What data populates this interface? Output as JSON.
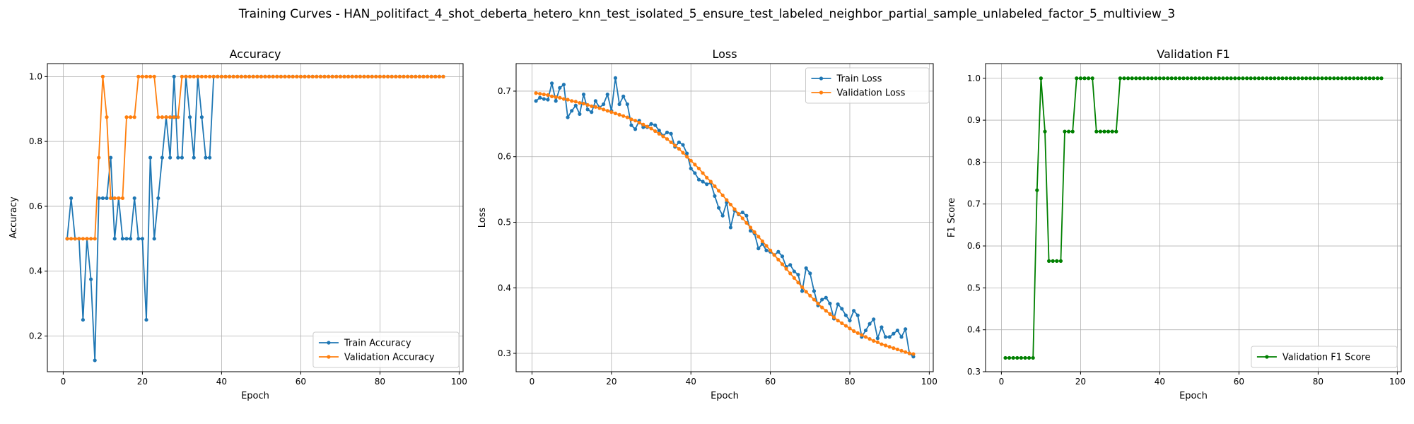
{
  "suptitle": "Training Curves - HAN_politifact_4_shot_deberta_hetero_knn_test_isolated_5_ensure_test_labeled_neighbor_partial_sample_unlabeled_factor_5_multiview_3",
  "colors": {
    "train": "#1f77b4",
    "val": "#ff7f0e",
    "f1": "#008000"
  },
  "chart_data": [
    {
      "type": "line",
      "title": "Accuracy",
      "xlabel": "Epoch",
      "ylabel": "Accuracy",
      "xlim": [
        -4,
        101
      ],
      "ylim": [
        0.09,
        1.04
      ],
      "xticks": [
        0,
        20,
        40,
        60,
        80,
        100
      ],
      "yticks": [
        0.2,
        0.4,
        0.6,
        0.8,
        1.0
      ],
      "ytick_labels": [
        "0.2",
        "0.4",
        "0.6",
        "0.8",
        "1.0"
      ],
      "grid": true,
      "legend_position": "lower-right",
      "x": [
        1,
        2,
        3,
        4,
        5,
        6,
        7,
        8,
        9,
        10,
        11,
        12,
        13,
        14,
        15,
        16,
        17,
        18,
        19,
        20,
        21,
        22,
        23,
        24,
        25,
        26,
        27,
        28,
        29,
        30,
        31,
        32,
        33,
        34,
        35,
        36,
        37,
        38,
        39,
        40,
        41,
        42,
        43,
        44,
        45,
        46,
        47,
        48,
        49,
        50,
        51,
        52,
        53,
        54,
        55,
        56,
        57,
        58,
        59,
        60,
        61,
        62,
        63,
        64,
        65,
        66,
        67,
        68,
        69,
        70,
        71,
        72,
        73,
        74,
        75,
        76,
        77,
        78,
        79,
        80,
        81,
        82,
        83,
        84,
        85,
        86,
        87,
        88,
        89,
        90,
        91,
        92,
        93,
        94,
        95,
        96
      ],
      "series": [
        {
          "name": "Train Accuracy",
          "color_key": "train",
          "values": [
            0.5,
            0.625,
            0.5,
            0.5,
            0.25,
            0.5,
            0.375,
            0.125,
            0.625,
            0.625,
            0.625,
            0.75,
            0.5,
            0.625,
            0.5,
            0.5,
            0.5,
            0.625,
            0.5,
            0.5,
            0.25,
            0.75,
            0.5,
            0.625,
            0.75,
            0.875,
            0.75,
            1.0,
            0.75,
            0.75,
            1.0,
            0.875,
            0.75,
            1.0,
            0.875,
            0.75,
            0.75,
            1.0,
            1.0,
            1.0,
            1.0,
            1.0,
            1.0,
            1.0,
            1.0,
            1.0,
            1.0,
            1.0,
            1.0,
            1.0,
            1.0,
            1.0,
            1.0,
            1.0,
            1.0,
            1.0,
            1.0,
            1.0,
            1.0,
            1.0,
            1.0,
            1.0,
            1.0,
            1.0,
            1.0,
            1.0,
            1.0,
            1.0,
            1.0,
            1.0,
            1.0,
            1.0,
            1.0,
            1.0,
            1.0,
            1.0,
            1.0,
            1.0,
            1.0,
            1.0,
            1.0,
            1.0,
            1.0,
            1.0,
            1.0,
            1.0,
            1.0,
            1.0,
            1.0,
            1.0,
            1.0,
            1.0,
            1.0,
            1.0,
            1.0,
            1.0
          ]
        },
        {
          "name": "Validation Accuracy",
          "color_key": "val",
          "values": [
            0.5,
            0.5,
            0.5,
            0.5,
            0.5,
            0.5,
            0.5,
            0.5,
            0.75,
            1.0,
            0.875,
            0.625,
            0.625,
            0.625,
            0.625,
            0.875,
            0.875,
            0.875,
            1.0,
            1.0,
            1.0,
            1.0,
            1.0,
            0.875,
            0.875,
            0.875,
            0.875,
            0.875,
            0.875,
            1.0,
            1.0,
            1.0,
            1.0,
            1.0,
            1.0,
            1.0,
            1.0,
            1.0,
            1.0,
            1.0,
            1.0,
            1.0,
            1.0,
            1.0,
            1.0,
            1.0,
            1.0,
            1.0,
            1.0,
            1.0,
            1.0,
            1.0,
            1.0,
            1.0,
            1.0,
            1.0,
            1.0,
            1.0,
            1.0,
            1.0,
            1.0,
            1.0,
            1.0,
            1.0,
            1.0,
            1.0,
            1.0,
            1.0,
            1.0,
            1.0,
            1.0,
            1.0,
            1.0,
            1.0,
            1.0,
            1.0,
            1.0,
            1.0,
            1.0,
            1.0,
            1.0,
            1.0,
            1.0,
            1.0,
            1.0,
            1.0,
            1.0,
            1.0,
            1.0,
            1.0,
            1.0,
            1.0,
            1.0,
            1.0,
            1.0,
            1.0
          ]
        }
      ]
    },
    {
      "type": "line",
      "title": "Loss",
      "xlabel": "Epoch",
      "ylabel": "Loss",
      "xlim": [
        -4,
        101
      ],
      "ylim": [
        0.272,
        0.742
      ],
      "xticks": [
        0,
        20,
        40,
        60,
        80,
        100
      ],
      "yticks": [
        0.3,
        0.4,
        0.5,
        0.6,
        0.7
      ],
      "ytick_labels": [
        "0.3",
        "0.4",
        "0.5",
        "0.6",
        "0.7"
      ],
      "grid": true,
      "legend_position": "upper-right",
      "x": [
        1,
        2,
        3,
        4,
        5,
        6,
        7,
        8,
        9,
        10,
        11,
        12,
        13,
        14,
        15,
        16,
        17,
        18,
        19,
        20,
        21,
        22,
        23,
        24,
        25,
        26,
        27,
        28,
        29,
        30,
        31,
        32,
        33,
        34,
        35,
        36,
        37,
        38,
        39,
        40,
        41,
        42,
        43,
        44,
        45,
        46,
        47,
        48,
        49,
        50,
        51,
        52,
        53,
        54,
        55,
        56,
        57,
        58,
        59,
        60,
        61,
        62,
        63,
        64,
        65,
        66,
        67,
        68,
        69,
        70,
        71,
        72,
        73,
        74,
        75,
        76,
        77,
        78,
        79,
        80,
        81,
        82,
        83,
        84,
        85,
        86,
        87,
        88,
        89,
        90,
        91,
        92,
        93,
        94,
        95,
        96
      ],
      "series": [
        {
          "name": "Train Loss",
          "color_key": "train",
          "values": [
            0.685,
            0.69,
            0.688,
            0.687,
            0.712,
            0.685,
            0.705,
            0.71,
            0.66,
            0.67,
            0.678,
            0.665,
            0.695,
            0.672,
            0.668,
            0.685,
            0.675,
            0.68,
            0.695,
            0.67,
            0.72,
            0.68,
            0.692,
            0.68,
            0.648,
            0.642,
            0.655,
            0.645,
            0.645,
            0.65,
            0.648,
            0.64,
            0.632,
            0.637,
            0.635,
            0.615,
            0.622,
            0.618,
            0.605,
            0.582,
            0.575,
            0.565,
            0.562,
            0.558,
            0.56,
            0.54,
            0.522,
            0.51,
            0.53,
            0.492,
            0.518,
            0.512,
            0.515,
            0.51,
            0.487,
            0.483,
            0.46,
            0.467,
            0.457,
            0.455,
            0.45,
            0.455,
            0.448,
            0.432,
            0.435,
            0.425,
            0.42,
            0.395,
            0.43,
            0.422,
            0.395,
            0.373,
            0.382,
            0.385,
            0.376,
            0.353,
            0.375,
            0.368,
            0.358,
            0.35,
            0.365,
            0.358,
            0.325,
            0.335,
            0.345,
            0.352,
            0.323,
            0.34,
            0.325,
            0.325,
            0.33,
            0.335,
            0.325,
            0.337,
            0.3,
            0.295
          ]
        },
        {
          "name": "Validation Loss",
          "color_key": "val",
          "values": [
            0.697,
            0.696,
            0.695,
            0.694,
            0.692,
            0.691,
            0.69,
            0.688,
            0.687,
            0.685,
            0.684,
            0.682,
            0.681,
            0.679,
            0.677,
            0.676,
            0.674,
            0.672,
            0.67,
            0.668,
            0.666,
            0.664,
            0.662,
            0.66,
            0.657,
            0.655,
            0.652,
            0.649,
            0.646,
            0.643,
            0.639,
            0.635,
            0.631,
            0.627,
            0.622,
            0.617,
            0.612,
            0.606,
            0.6,
            0.594,
            0.588,
            0.582,
            0.575,
            0.568,
            0.562,
            0.555,
            0.548,
            0.541,
            0.534,
            0.527,
            0.52,
            0.513,
            0.506,
            0.499,
            0.492,
            0.485,
            0.478,
            0.471,
            0.464,
            0.457,
            0.45,
            0.443,
            0.436,
            0.429,
            0.422,
            0.415,
            0.408,
            0.401,
            0.394,
            0.388,
            0.382,
            0.376,
            0.37,
            0.365,
            0.36,
            0.355,
            0.35,
            0.346,
            0.342,
            0.338,
            0.334,
            0.331,
            0.328,
            0.325,
            0.322,
            0.319,
            0.317,
            0.314,
            0.312,
            0.31,
            0.308,
            0.306,
            0.304,
            0.302,
            0.3,
            0.299
          ]
        }
      ]
    },
    {
      "type": "line",
      "title": "Validation F1",
      "xlabel": "Epoch",
      "ylabel": "F1 Score",
      "xlim": [
        -4,
        101
      ],
      "ylim": [
        0.3,
        1.035
      ],
      "xticks": [
        0,
        20,
        40,
        60,
        80,
        100
      ],
      "yticks": [
        0.3,
        0.4,
        0.5,
        0.6,
        0.7,
        0.8,
        0.9,
        1.0
      ],
      "ytick_labels": [
        "0.3",
        "0.4",
        "0.5",
        "0.6",
        "0.7",
        "0.8",
        "0.9",
        "1.0"
      ],
      "grid": true,
      "legend_position": "lower-right",
      "x": [
        1,
        2,
        3,
        4,
        5,
        6,
        7,
        8,
        9,
        10,
        11,
        12,
        13,
        14,
        15,
        16,
        17,
        18,
        19,
        20,
        21,
        22,
        23,
        24,
        25,
        26,
        27,
        28,
        29,
        30,
        31,
        32,
        33,
        34,
        35,
        36,
        37,
        38,
        39,
        40,
        41,
        42,
        43,
        44,
        45,
        46,
        47,
        48,
        49,
        50,
        51,
        52,
        53,
        54,
        55,
        56,
        57,
        58,
        59,
        60,
        61,
        62,
        63,
        64,
        65,
        66,
        67,
        68,
        69,
        70,
        71,
        72,
        73,
        74,
        75,
        76,
        77,
        78,
        79,
        80,
        81,
        82,
        83,
        84,
        85,
        86,
        87,
        88,
        89,
        90,
        91,
        92,
        93,
        94,
        95,
        96
      ],
      "series": [
        {
          "name": "Validation F1 Score",
          "color_key": "f1",
          "values": [
            0.333,
            0.333,
            0.333,
            0.333,
            0.333,
            0.333,
            0.333,
            0.333,
            0.733,
            1.0,
            0.873,
            0.564,
            0.564,
            0.564,
            0.564,
            0.873,
            0.873,
            0.873,
            1.0,
            1.0,
            1.0,
            1.0,
            1.0,
            0.873,
            0.873,
            0.873,
            0.873,
            0.873,
            0.873,
            1.0,
            1.0,
            1.0,
            1.0,
            1.0,
            1.0,
            1.0,
            1.0,
            1.0,
            1.0,
            1.0,
            1.0,
            1.0,
            1.0,
            1.0,
            1.0,
            1.0,
            1.0,
            1.0,
            1.0,
            1.0,
            1.0,
            1.0,
            1.0,
            1.0,
            1.0,
            1.0,
            1.0,
            1.0,
            1.0,
            1.0,
            1.0,
            1.0,
            1.0,
            1.0,
            1.0,
            1.0,
            1.0,
            1.0,
            1.0,
            1.0,
            1.0,
            1.0,
            1.0,
            1.0,
            1.0,
            1.0,
            1.0,
            1.0,
            1.0,
            1.0,
            1.0,
            1.0,
            1.0,
            1.0,
            1.0,
            1.0,
            1.0,
            1.0,
            1.0,
            1.0,
            1.0,
            1.0,
            1.0,
            1.0,
            1.0,
            1.0
          ]
        }
      ]
    }
  ]
}
